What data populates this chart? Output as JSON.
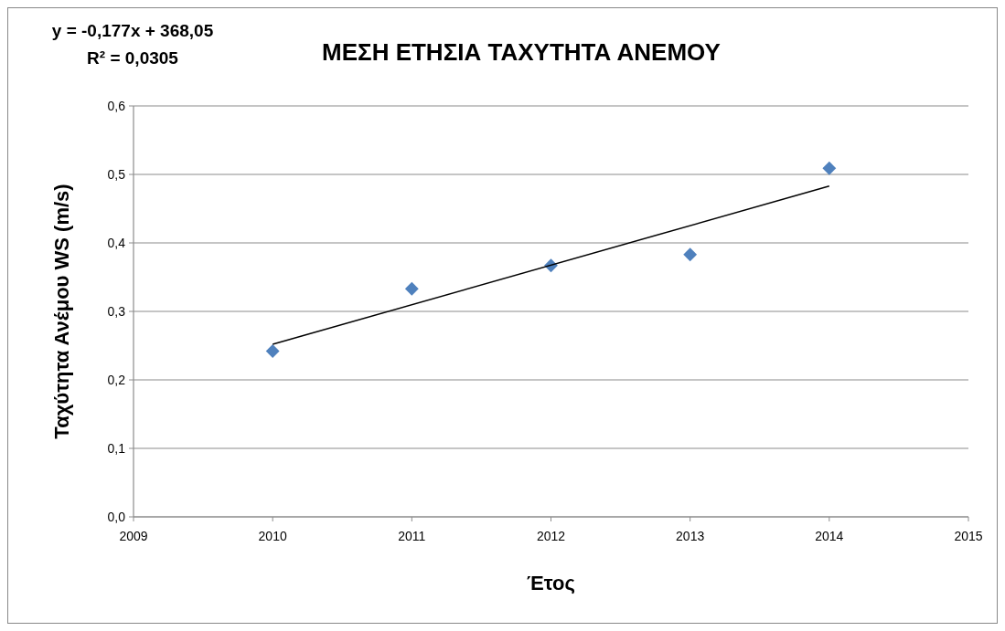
{
  "chart_data": {
    "type": "scatter",
    "title": "ΜΕΣΗ ΕΤΗΣΙΑ ΤΑΧΥΤΗΤΑ ΑΝΕΜΟΥ",
    "xlabel": "Έτος",
    "ylabel": "Ταχύτητα Ανέμου WS (m/s)",
    "annotations": [
      "y = -0,177x + 368,05",
      "R² = 0,0305"
    ],
    "x": [
      2010,
      2011,
      2012,
      2013,
      2014
    ],
    "series": [
      {
        "type": "scatter",
        "color": "#4f81bd",
        "marker": "diamond",
        "values": [
          0.242,
          0.333,
          0.367,
          0.383,
          0.509
        ]
      },
      {
        "type": "line",
        "color": "#000000",
        "x": [
          2010,
          2014
        ],
        "values": [
          0.252,
          0.483
        ],
        "marker": "none"
      }
    ],
    "xlim": [
      2009,
      2015
    ],
    "xticks": [
      2009,
      2010,
      2011,
      2012,
      2013,
      2014,
      2015
    ],
    "ylim": [
      0,
      0.6
    ],
    "yticks": [
      {
        "value": 0,
        "label": "0,0"
      },
      {
        "value": 0.1,
        "label": "0,1"
      },
      {
        "value": 0.2,
        "label": "0,2"
      },
      {
        "value": 0.3,
        "label": "0,3"
      },
      {
        "value": 0.4,
        "label": "0,4"
      },
      {
        "value": 0.5,
        "label": "0,5"
      },
      {
        "value": 0.6,
        "label": "0,6"
      }
    ],
    "grid": "y"
  }
}
